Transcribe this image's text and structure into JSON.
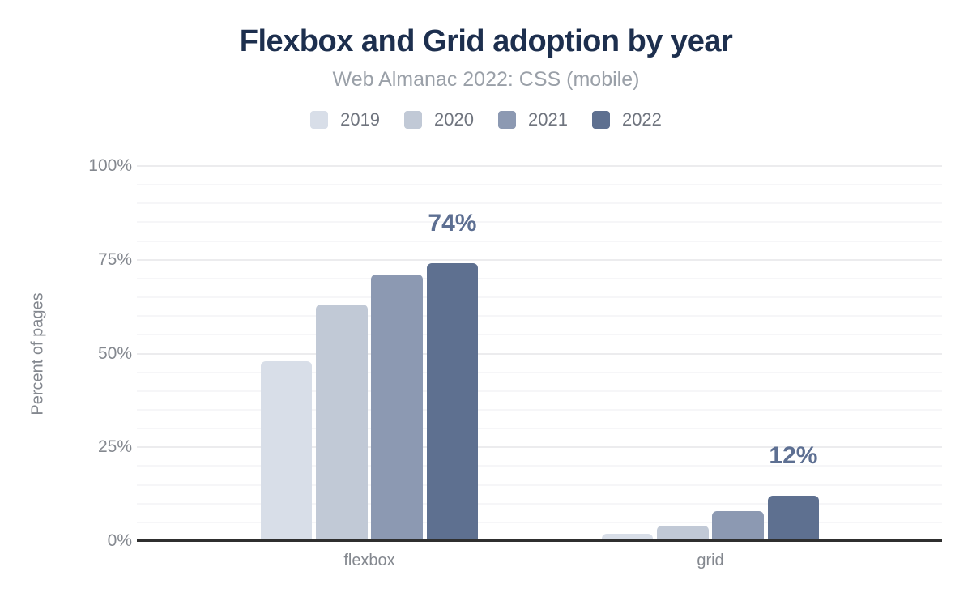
{
  "chart_data": {
    "type": "bar",
    "title": "Flexbox and Grid adoption by year",
    "subtitle": "Web Almanac 2022: CSS (mobile)",
    "ylabel": "Percent of pages",
    "xlabel": "",
    "categories": [
      "flexbox",
      "grid"
    ],
    "series": [
      {
        "name": "2019",
        "color": "#d8dee8",
        "values": [
          48,
          2
        ]
      },
      {
        "name": "2020",
        "color": "#c1c9d6",
        "values": [
          63,
          4
        ]
      },
      {
        "name": "2021",
        "color": "#8c99b2",
        "values": [
          71,
          8
        ]
      },
      {
        "name": "2022",
        "color": "#5e7090",
        "values": [
          74,
          12
        ]
      }
    ],
    "data_labels": [
      {
        "category": "flexbox",
        "series": "2022",
        "text": "74%"
      },
      {
        "category": "grid",
        "series": "2022",
        "text": "12%"
      }
    ],
    "yticks": [
      {
        "label": "0%",
        "value": 0
      },
      {
        "label": "25%",
        "value": 25
      },
      {
        "label": "50%",
        "value": 50
      },
      {
        "label": "75%",
        "value": 75
      },
      {
        "label": "100%",
        "value": 100
      }
    ],
    "ylim": [
      0,
      100
    ],
    "grid": {
      "orientation": "horizontal",
      "minor_every": 5,
      "major_every": 25
    },
    "legend_position": "top",
    "colors": {
      "title": "#1d2f4e",
      "subtitle": "#9aa0a8",
      "axis_text": "#84888f",
      "legend_text": "#6f747e",
      "data_label": "#5d6f92",
      "axis_line": "#2f2f2f",
      "gridline_major": "#ececee",
      "gridline_minor": "#f6f6f8",
      "background": "#ffffff"
    }
  }
}
